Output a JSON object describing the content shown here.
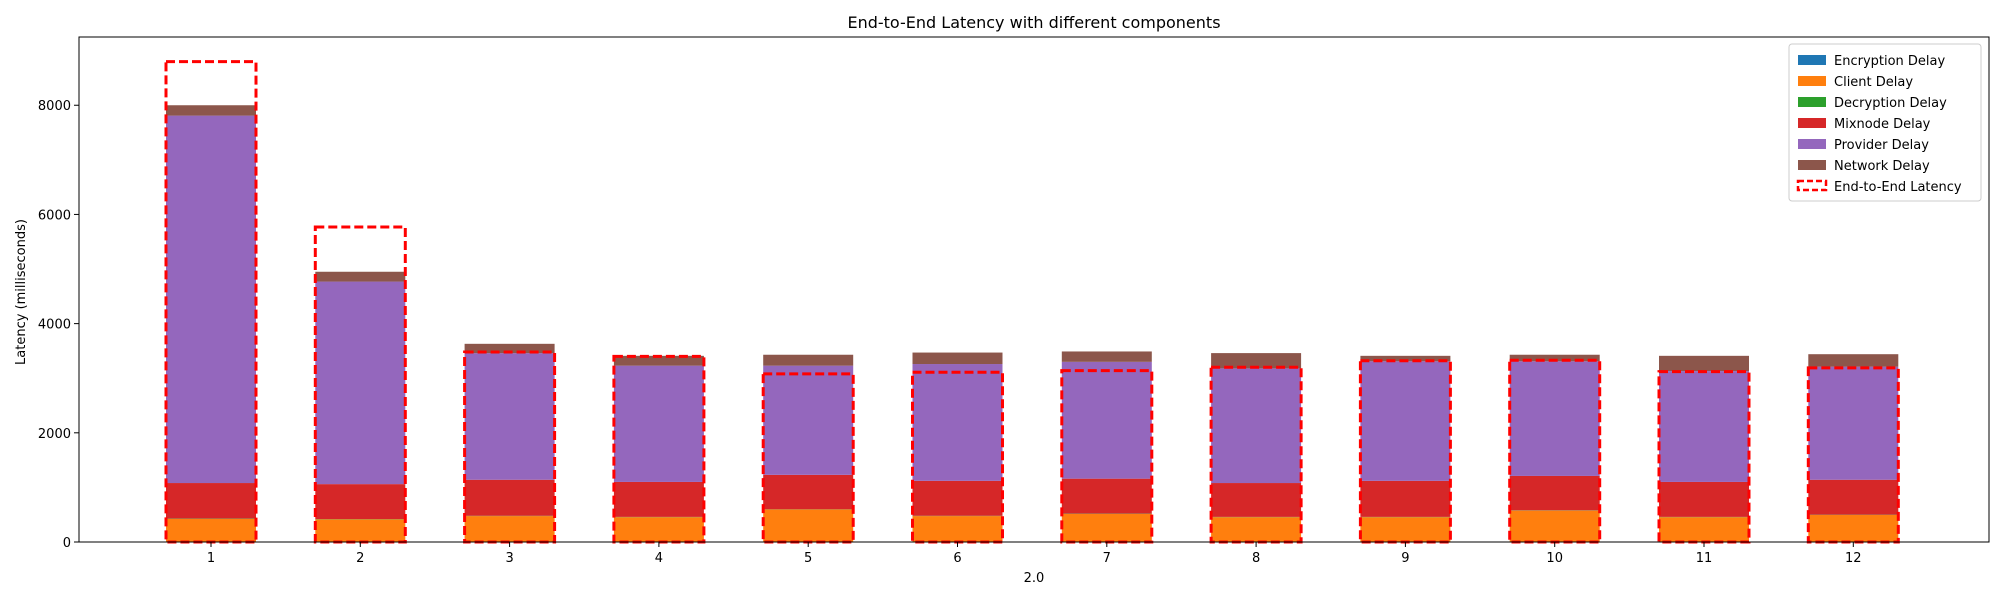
{
  "chart_data": {
    "type": "bar",
    "title": "End-to-End Latency with different components",
    "xlabel": "2.0",
    "ylabel": "Latency (milliseconds)",
    "ylim": [
      0,
      9250
    ],
    "yticks": [
      0,
      2000,
      4000,
      6000,
      8000
    ],
    "grid": false,
    "legend_position": "top-right",
    "stacked": true,
    "categories": [
      "1",
      "2",
      "3",
      "4",
      "5",
      "6",
      "7",
      "8",
      "9",
      "10",
      "11",
      "12"
    ],
    "series": [
      {
        "name": "Encryption Delay",
        "color": "#1f77b4",
        "values": [
          5,
          5,
          5,
          5,
          5,
          5,
          5,
          5,
          5,
          5,
          5,
          5
        ]
      },
      {
        "name": "Client Delay",
        "color": "#ff7f0e",
        "values": [
          420,
          410,
          470,
          450,
          590,
          470,
          510,
          450,
          450,
          570,
          450,
          490
        ]
      },
      {
        "name": "Decryption Delay",
        "color": "#2ca02c",
        "values": [
          5,
          5,
          5,
          5,
          5,
          5,
          5,
          5,
          5,
          5,
          5,
          5
        ]
      },
      {
        "name": "Mixnode Delay",
        "color": "#d62728",
        "values": [
          650,
          640,
          660,
          640,
          630,
          640,
          640,
          620,
          660,
          630,
          640,
          640
        ]
      },
      {
        "name": "Provider Delay",
        "color": "#9467bd",
        "values": [
          6730,
          3710,
          2320,
          2130,
          2000,
          2140,
          2140,
          2100,
          2190,
          2100,
          2030,
          2070
        ]
      },
      {
        "name": "Network Delay",
        "color": "#8c564b",
        "values": [
          190,
          180,
          170,
          180,
          200,
          210,
          190,
          280,
          100,
          120,
          280,
          230
        ]
      }
    ],
    "overlay": {
      "name": "End-to-End Latency",
      "color": "#ff0000",
      "style": "dashed",
      "values": [
        8800,
        5770,
        3480,
        3400,
        3080,
        3110,
        3140,
        3200,
        3320,
        3330,
        3120,
        3190
      ]
    }
  }
}
